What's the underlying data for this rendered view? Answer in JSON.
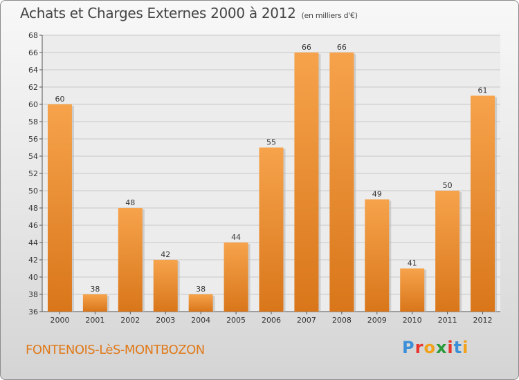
{
  "header": {
    "title": "Achats et Charges Externes 2000 à 2012",
    "subtitle": "(en milliers d'€)"
  },
  "footer": {
    "commune": "FONTENOIS-LèS-MONTBOZON",
    "brand": "Proxiti",
    "brand_colors": [
      "#3a8fd8",
      "#e8342a",
      "#f2a11a",
      "#2a9a3a",
      "#e8342a",
      "#3a8fd8",
      "#f2a11a"
    ]
  },
  "chart_data": {
    "type": "bar",
    "title": "Achats et Charges Externes 2000 à 2012",
    "subtitle": "(en milliers d'€)",
    "categories": [
      "2000",
      "2001",
      "2002",
      "2003",
      "2004",
      "2005",
      "2006",
      "2007",
      "2008",
      "2009",
      "2010",
      "2011",
      "2012"
    ],
    "values": [
      60,
      38,
      48,
      42,
      38,
      44,
      55,
      66,
      66,
      49,
      41,
      50,
      61
    ],
    "ylim": [
      36,
      68
    ],
    "ytick_step": 2,
    "grid": true,
    "xlabel": "",
    "ylabel": "",
    "colors": {
      "bar_top": "#f6a34c",
      "bar_bottom": "#d9761a",
      "grid": "#c8c8c8",
      "axis": "#555555"
    }
  }
}
